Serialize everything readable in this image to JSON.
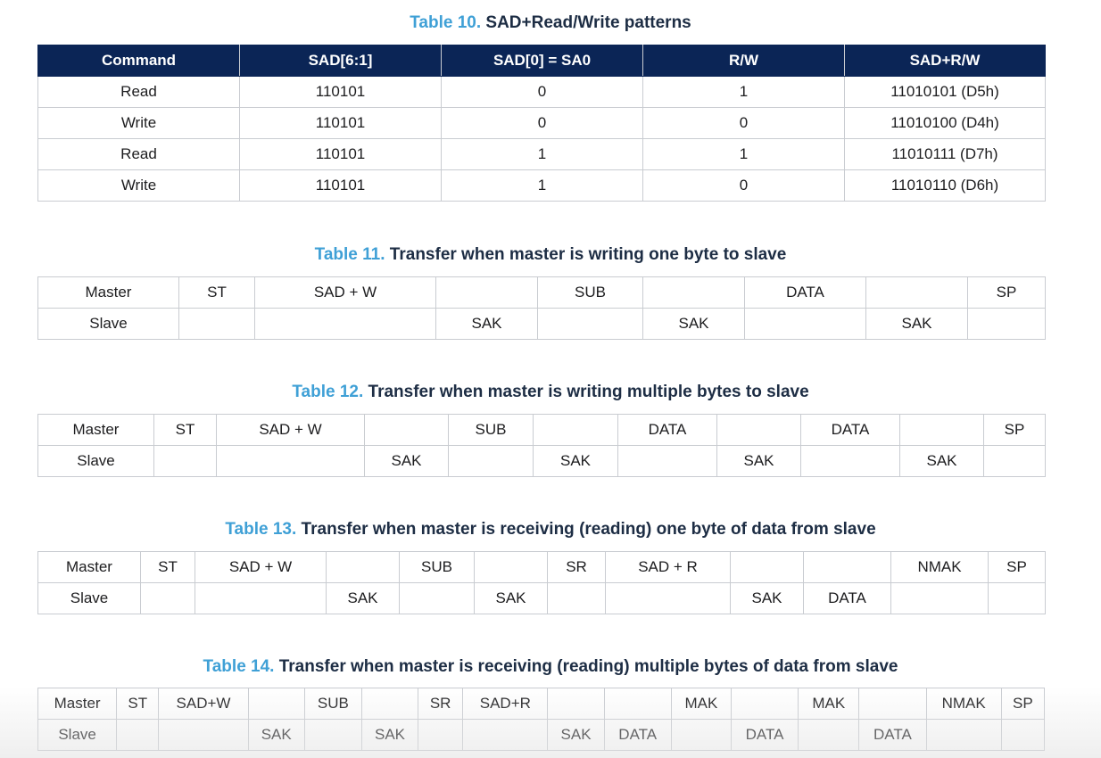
{
  "table10": {
    "num": "Table 10.",
    "title": "SAD+Read/Write patterns",
    "headers": [
      "Command",
      "SAD[6:1]",
      "SAD[0] = SA0",
      "R/W",
      "SAD+R/W"
    ],
    "rows": [
      [
        "Read",
        "110101",
        "0",
        "1",
        "11010101 (D5h)"
      ],
      [
        "Write",
        "110101",
        "0",
        "0",
        "11010100 (D4h)"
      ],
      [
        "Read",
        "110101",
        "1",
        "1",
        "11010111 (D7h)"
      ],
      [
        "Write",
        "110101",
        "1",
        "0",
        "11010110 (D6h)"
      ]
    ]
  },
  "table11": {
    "num": "Table 11.",
    "title": "Transfer when master is writing one byte to slave",
    "rows": [
      [
        "Master",
        "ST",
        "SAD + W",
        "",
        "SUB",
        "",
        "DATA",
        "",
        "SP"
      ],
      [
        "Slave",
        "",
        "",
        "SAK",
        "",
        "SAK",
        "",
        "SAK",
        ""
      ]
    ]
  },
  "table12": {
    "num": "Table 12.",
    "title": "Transfer when master is writing multiple bytes to slave",
    "rows": [
      [
        "Master",
        "ST",
        "SAD + W",
        "",
        "SUB",
        "",
        "DATA",
        "",
        "DATA",
        "",
        "SP"
      ],
      [
        "Slave",
        "",
        "",
        "SAK",
        "",
        "SAK",
        "",
        "SAK",
        "",
        "SAK",
        ""
      ]
    ]
  },
  "table13": {
    "num": "Table 13.",
    "title": "Transfer when master is receiving (reading) one byte of data from slave",
    "rows": [
      [
        "Master",
        "ST",
        "SAD + W",
        "",
        "SUB",
        "",
        "SR",
        "SAD + R",
        "",
        "",
        "NMAK",
        "SP"
      ],
      [
        "Slave",
        "",
        "",
        "SAK",
        "",
        "SAK",
        "",
        "",
        "SAK",
        "DATA",
        "",
        ""
      ]
    ]
  },
  "table14": {
    "num": "Table 14.",
    "title": "Transfer when master is receiving (reading) multiple bytes of data from slave",
    "rows": [
      [
        "Master",
        "ST",
        "SAD+W",
        "",
        "SUB",
        "",
        "SR",
        "SAD+R",
        "",
        "",
        "MAK",
        "",
        "MAK",
        "",
        "NMAK",
        "SP"
      ],
      [
        "Slave",
        "",
        "",
        "SAK",
        "",
        "SAK",
        "",
        "",
        "SAK",
        "DATA",
        "",
        "DATA",
        "",
        "DATA",
        "",
        ""
      ]
    ]
  }
}
